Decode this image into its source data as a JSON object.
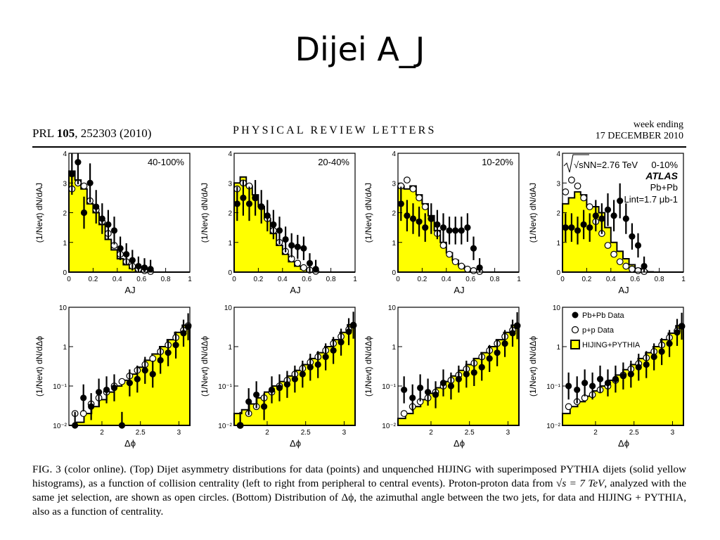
{
  "slide": {
    "title": "Dijei A_J"
  },
  "paper": {
    "journal": "PRL",
    "volume": "105",
    "ref_rest": ", 252303 (2010)",
    "header_center": "PHYSICAL REVIEW LETTERS",
    "header_right_1": "week ending",
    "header_right_2": "17 DECEMBER 2010"
  },
  "caption": {
    "fig": "FIG. 3 (color online).",
    "p1": "(Top) Dijet asymmetry distributions for data (points) and unquenched",
    "hijing": "HIJING",
    "p2": "with superimposed",
    "pythia": "PYTHIA",
    "p3": "dijets (solid yellow histograms), as a function of collision centrality (left to right from peripheral to central events). Proton-proton data from",
    "sqrt_s": "√s = 7 TeV",
    "p4": ", analyzed with the same jet selection, are shown as open circles. (Bottom) Distribution of Δϕ, the azimuthal angle between the two jets, for data and",
    "hp": "HIJING + PYTHIA",
    "p5": ", also as a function of centrality."
  },
  "colors": {
    "histogram_fill": "#ffff00",
    "line": "#000000",
    "background": "#ffffff"
  },
  "annotations": {
    "sqrt_label": "√sNN=2.76 TeV",
    "atlas": "ATLAS",
    "system": "Pb+Pb",
    "lumi": "Lint=1.7 μb-1"
  },
  "legend": {
    "pbpb": "Pb+Pb Data",
    "pp": "p+p Data",
    "hijing": "HIJING+PYTHIA"
  },
  "chart_data": [
    {
      "type": "bar",
      "panel": "AJ",
      "centrality": "40-100%",
      "xlabel": "AJ",
      "ylabel": "(1/Nevt) dN/dAJ",
      "xlim": [
        0,
        1
      ],
      "ylim": [
        0,
        4
      ],
      "x_ticks": [
        "0",
        "0.2",
        "0.4",
        "0.6",
        "0.8",
        "1"
      ],
      "y_ticks": [
        "0",
        "1",
        "2",
        "3",
        "4"
      ],
      "hist": [
        3.4,
        3.1,
        2.8,
        2.3,
        2.0,
        1.6,
        1.1,
        0.75,
        0.45,
        0.25,
        0.12,
        0.05,
        0.02,
        0,
        0,
        0,
        0,
        0,
        0,
        0
      ],
      "pbpb": [
        [
          0.025,
          3.3
        ],
        [
          0.075,
          3.7
        ],
        [
          0.125,
          2.0
        ],
        [
          0.175,
          3.0
        ],
        [
          0.225,
          2.2
        ],
        [
          0.275,
          1.8
        ],
        [
          0.325,
          1.6
        ],
        [
          0.375,
          1.4
        ],
        [
          0.425,
          0.8
        ],
        [
          0.475,
          0.6
        ],
        [
          0.525,
          0.4
        ],
        [
          0.575,
          0.2
        ],
        [
          0.625,
          0.15
        ],
        [
          0.675,
          0.1
        ]
      ],
      "pp": [
        [
          0.025,
          2.8
        ],
        [
          0.075,
          3.0
        ],
        [
          0.125,
          2.9
        ],
        [
          0.175,
          2.4
        ],
        [
          0.225,
          2.1
        ],
        [
          0.275,
          1.7
        ],
        [
          0.325,
          1.3
        ],
        [
          0.375,
          0.9
        ],
        [
          0.425,
          0.6
        ],
        [
          0.475,
          0.35
        ],
        [
          0.525,
          0.2
        ],
        [
          0.575,
          0.1
        ],
        [
          0.625,
          0.05
        ],
        [
          0.675,
          0.02
        ]
      ]
    },
    {
      "type": "bar",
      "panel": "AJ",
      "centrality": "20-40%",
      "xlabel": "AJ",
      "ylabel": "(1/Nevt) dN/dAJ",
      "xlim": [
        0,
        1
      ],
      "ylim": [
        0,
        4
      ],
      "x_ticks": [
        "0",
        "0.2",
        "0.4",
        "0.6",
        "0.8",
        "1"
      ],
      "y_ticks": [
        "0",
        "1",
        "2",
        "3",
        "4"
      ],
      "hist": [
        3.0,
        3.2,
        2.9,
        2.6,
        2.2,
        1.8,
        1.3,
        0.9,
        0.6,
        0.35,
        0.2,
        0.1,
        0.04,
        0.01,
        0,
        0,
        0,
        0,
        0,
        0
      ],
      "pbpb": [
        [
          0.025,
          2.3
        ],
        [
          0.075,
          2.5
        ],
        [
          0.125,
          2.3
        ],
        [
          0.175,
          2.5
        ],
        [
          0.225,
          2.2
        ],
        [
          0.275,
          1.9
        ],
        [
          0.325,
          1.6
        ],
        [
          0.375,
          1.4
        ],
        [
          0.425,
          1.1
        ],
        [
          0.475,
          0.9
        ],
        [
          0.525,
          0.85
        ],
        [
          0.575,
          0.8
        ],
        [
          0.625,
          0.3
        ],
        [
          0.675,
          0.1
        ]
      ],
      "pp": [
        [
          0.025,
          2.8
        ],
        [
          0.075,
          3.0
        ],
        [
          0.125,
          2.9
        ],
        [
          0.175,
          2.5
        ],
        [
          0.225,
          2.2
        ],
        [
          0.275,
          1.8
        ],
        [
          0.325,
          1.4
        ],
        [
          0.375,
          1.0
        ],
        [
          0.425,
          0.7
        ],
        [
          0.475,
          0.45
        ],
        [
          0.525,
          0.3
        ],
        [
          0.575,
          0.15
        ],
        [
          0.625,
          0.07
        ],
        [
          0.675,
          0.03
        ]
      ]
    },
    {
      "type": "bar",
      "panel": "AJ",
      "centrality": "10-20%",
      "xlabel": "AJ",
      "ylabel": "(1/Nevt) dN/dAJ",
      "xlim": [
        0,
        1
      ],
      "ylim": [
        0,
        4
      ],
      "x_ticks": [
        "0",
        "0.2",
        "0.4",
        "0.6",
        "0.8",
        "1"
      ],
      "y_ticks": [
        "0",
        "1",
        "2",
        "3",
        "4"
      ],
      "hist": [
        2.9,
        2.8,
        2.9,
        2.6,
        2.3,
        1.9,
        1.4,
        1.0,
        0.65,
        0.4,
        0.22,
        0.1,
        0.04,
        0.01,
        0,
        0,
        0,
        0,
        0,
        0
      ],
      "pbpb": [
        [
          0.025,
          2.3
        ],
        [
          0.075,
          1.9
        ],
        [
          0.125,
          1.8
        ],
        [
          0.175,
          1.7
        ],
        [
          0.225,
          1.5
        ],
        [
          0.275,
          1.8
        ],
        [
          0.325,
          1.6
        ],
        [
          0.375,
          1.5
        ],
        [
          0.425,
          1.4
        ],
        [
          0.475,
          1.4
        ],
        [
          0.525,
          1.4
        ],
        [
          0.575,
          1.5
        ],
        [
          0.625,
          0.8
        ],
        [
          0.675,
          0.15
        ]
      ],
      "pp": [
        [
          0.025,
          2.9
        ],
        [
          0.075,
          3.1
        ],
        [
          0.125,
          2.8
        ],
        [
          0.175,
          2.5
        ],
        [
          0.225,
          2.2
        ],
        [
          0.275,
          1.8
        ],
        [
          0.325,
          1.3
        ],
        [
          0.375,
          0.9
        ],
        [
          0.425,
          0.6
        ],
        [
          0.475,
          0.35
        ],
        [
          0.525,
          0.2
        ],
        [
          0.575,
          0.1
        ],
        [
          0.625,
          0.05
        ],
        [
          0.675,
          0.02
        ]
      ]
    },
    {
      "type": "bar",
      "panel": "AJ",
      "centrality": "0-10%",
      "xlabel": "AJ",
      "ylabel": "(1/Nevt) dN/dAJ",
      "xlim": [
        0,
        1
      ],
      "ylim": [
        0,
        4
      ],
      "x_ticks": [
        "0",
        "0.2",
        "0.4",
        "0.6",
        "0.8",
        "1"
      ],
      "y_ticks": [
        "0",
        "1",
        "2",
        "3",
        "4"
      ],
      "hist": [
        2.3,
        2.5,
        2.7,
        2.6,
        2.2,
        2.2,
        2.0,
        1.5,
        1.0,
        0.7,
        0.45,
        0.25,
        0.12,
        0.05,
        0.01,
        0,
        0,
        0,
        0,
        0
      ],
      "pbpb": [
        [
          0.025,
          1.5
        ],
        [
          0.075,
          1.5
        ],
        [
          0.125,
          1.4
        ],
        [
          0.175,
          1.6
        ],
        [
          0.225,
          1.5
        ],
        [
          0.275,
          1.9
        ],
        [
          0.325,
          1.8
        ],
        [
          0.375,
          2.1
        ],
        [
          0.425,
          1.9
        ],
        [
          0.475,
          2.4
        ],
        [
          0.525,
          1.8
        ],
        [
          0.575,
          1.2
        ],
        [
          0.625,
          0.9
        ],
        [
          0.675,
          0.2
        ]
      ],
      "pp": [
        [
          0.025,
          2.7
        ],
        [
          0.075,
          3.1
        ],
        [
          0.125,
          2.9
        ],
        [
          0.175,
          2.5
        ],
        [
          0.225,
          2.2
        ],
        [
          0.275,
          1.7
        ],
        [
          0.325,
          1.3
        ],
        [
          0.375,
          0.9
        ],
        [
          0.425,
          0.6
        ],
        [
          0.475,
          0.35
        ],
        [
          0.525,
          0.2
        ],
        [
          0.575,
          0.1
        ],
        [
          0.625,
          0.05
        ],
        [
          0.675,
          0.02
        ]
      ]
    },
    {
      "type": "bar",
      "panel": "dphi",
      "centrality": "40-100%",
      "xlabel": "Δϕ",
      "ylabel": "(1/Nevt) dN/dΔϕ",
      "xlim": [
        1.571,
        3.142
      ],
      "ylim": [
        0.01,
        10
      ],
      "log_y": true,
      "x_ticks": [
        "2",
        "2.5",
        "3"
      ],
      "y_ticks": [
        "10⁻²",
        "10⁻¹",
        "1",
        "10"
      ],
      "hist": [
        0.009,
        0.012,
        0.02,
        0.03,
        0.045,
        0.07,
        0.1,
        0.14,
        0.2,
        0.3,
        0.45,
        0.65,
        1.0,
        1.5,
        2.3,
        3.5
      ],
      "pbpb": [
        [
          1.65,
          0.01
        ],
        [
          1.76,
          0.05
        ],
        [
          1.86,
          0.03
        ],
        [
          1.96,
          0.07
        ],
        [
          2.06,
          0.08
        ],
        [
          2.16,
          0.09
        ],
        [
          2.26,
          0.01
        ],
        [
          2.36,
          0.12
        ],
        [
          2.46,
          0.15
        ],
        [
          2.56,
          0.25
        ],
        [
          2.66,
          0.2
        ],
        [
          2.76,
          0.45
        ],
        [
          2.86,
          0.7
        ],
        [
          2.96,
          1.1
        ],
        [
          3.06,
          2.2
        ],
        [
          3.12,
          3.2
        ]
      ],
      "pp": [
        [
          1.65,
          0.02
        ],
        [
          1.76,
          0.02
        ],
        [
          1.86,
          0.035
        ],
        [
          1.96,
          0.05
        ],
        [
          2.06,
          0.07
        ],
        [
          2.16,
          0.1
        ],
        [
          2.26,
          0.13
        ],
        [
          2.36,
          0.18
        ],
        [
          2.46,
          0.25
        ],
        [
          2.56,
          0.35
        ],
        [
          2.66,
          0.5
        ],
        [
          2.76,
          0.75
        ],
        [
          2.86,
          1.1
        ],
        [
          2.96,
          1.7
        ],
        [
          3.06,
          2.6
        ],
        [
          3.12,
          3.4
        ]
      ]
    },
    {
      "type": "bar",
      "panel": "dphi",
      "centrality": "20-40%",
      "xlabel": "Δϕ",
      "ylabel": "(1/Nevt) dN/dΔϕ",
      "xlim": [
        1.571,
        3.142
      ],
      "ylim": [
        0.01,
        10
      ],
      "log_y": true,
      "x_ticks": [
        "2",
        "2.5",
        "3"
      ],
      "y_ticks": [
        "10⁻²",
        "10⁻¹",
        "1",
        "10"
      ],
      "hist": [
        0.02,
        0.025,
        0.035,
        0.05,
        0.07,
        0.1,
        0.13,
        0.18,
        0.25,
        0.35,
        0.5,
        0.7,
        1.0,
        1.5,
        2.3,
        3.6
      ],
      "pbpb": [
        [
          1.65,
          0.01
        ],
        [
          1.76,
          0.04
        ],
        [
          1.86,
          0.06
        ],
        [
          1.96,
          0.03
        ],
        [
          2.06,
          0.08
        ],
        [
          2.16,
          0.09
        ],
        [
          2.26,
          0.11
        ],
        [
          2.36,
          0.15
        ],
        [
          2.46,
          0.2
        ],
        [
          2.56,
          0.3
        ],
        [
          2.66,
          0.35
        ],
        [
          2.76,
          0.55
        ],
        [
          2.86,
          0.8
        ],
        [
          2.96,
          1.3
        ],
        [
          3.06,
          2.4
        ],
        [
          3.12,
          3.5
        ]
      ],
      "pp": [
        [
          1.65,
          0.01
        ],
        [
          1.76,
          0.02
        ],
        [
          1.86,
          0.03
        ],
        [
          1.96,
          0.05
        ],
        [
          2.06,
          0.07
        ],
        [
          2.16,
          0.1
        ],
        [
          2.26,
          0.14
        ],
        [
          2.36,
          0.2
        ],
        [
          2.46,
          0.28
        ],
        [
          2.56,
          0.4
        ],
        [
          2.66,
          0.55
        ],
        [
          2.76,
          0.8
        ],
        [
          2.86,
          1.2
        ],
        [
          2.96,
          1.8
        ],
        [
          3.06,
          2.7
        ],
        [
          3.12,
          3.5
        ]
      ]
    },
    {
      "type": "bar",
      "panel": "dphi",
      "centrality": "10-20%",
      "xlabel": "Δϕ",
      "ylabel": "(1/Nevt) dN/dΔϕ",
      "xlim": [
        1.571,
        3.142
      ],
      "ylim": [
        0.01,
        10
      ],
      "log_y": true,
      "x_ticks": [
        "2",
        "2.5",
        "3"
      ],
      "y_ticks": [
        "10⁻²",
        "10⁻¹",
        "1",
        "10"
      ],
      "hist": [
        0.015,
        0.02,
        0.03,
        0.045,
        0.065,
        0.09,
        0.13,
        0.18,
        0.25,
        0.35,
        0.5,
        0.7,
        1.0,
        1.5,
        2.3,
        3.5
      ],
      "pbpb": [
        [
          1.65,
          0.08
        ],
        [
          1.76,
          0.05
        ],
        [
          1.86,
          0.09
        ],
        [
          1.96,
          0.07
        ],
        [
          2.06,
          0.06
        ],
        [
          2.16,
          0.12
        ],
        [
          2.26,
          0.1
        ],
        [
          2.36,
          0.15
        ],
        [
          2.46,
          0.2
        ],
        [
          2.56,
          0.22
        ],
        [
          2.66,
          0.3
        ],
        [
          2.76,
          0.5
        ],
        [
          2.86,
          0.7
        ],
        [
          2.96,
          1.2
        ],
        [
          3.06,
          2.2
        ],
        [
          3.12,
          3.4
        ]
      ],
      "pp": [
        [
          1.65,
          0.02
        ],
        [
          1.76,
          0.03
        ],
        [
          1.86,
          0.04
        ],
        [
          1.96,
          0.05
        ],
        [
          2.06,
          0.07
        ],
        [
          2.16,
          0.1
        ],
        [
          2.26,
          0.14
        ],
        [
          2.36,
          0.19
        ],
        [
          2.46,
          0.27
        ],
        [
          2.56,
          0.38
        ],
        [
          2.66,
          0.55
        ],
        [
          2.76,
          0.8
        ],
        [
          2.86,
          1.2
        ],
        [
          2.96,
          1.8
        ],
        [
          3.06,
          2.6
        ],
        [
          3.12,
          3.4
        ]
      ]
    },
    {
      "type": "bar",
      "panel": "dphi",
      "centrality": "0-10%",
      "xlabel": "Δϕ",
      "ylabel": "(1/Nevt) dN/dΔϕ",
      "xlim": [
        1.571,
        3.142
      ],
      "ylim": [
        0.01,
        10
      ],
      "log_y": true,
      "x_ticks": [
        "2",
        "2.5",
        "3"
      ],
      "y_ticks": [
        "10⁻²",
        "10⁻¹",
        "1",
        "10"
      ],
      "hist": [
        0.02,
        0.03,
        0.04,
        0.055,
        0.075,
        0.1,
        0.14,
        0.19,
        0.26,
        0.35,
        0.5,
        0.7,
        1.0,
        1.5,
        2.2,
        3.4
      ],
      "pbpb": [
        [
          1.65,
          0.1
        ],
        [
          1.76,
          0.08
        ],
        [
          1.86,
          0.12
        ],
        [
          1.96,
          0.1
        ],
        [
          2.06,
          0.15
        ],
        [
          2.16,
          0.12
        ],
        [
          2.26,
          0.15
        ],
        [
          2.36,
          0.18
        ],
        [
          2.46,
          0.2
        ],
        [
          2.56,
          0.3
        ],
        [
          2.66,
          0.35
        ],
        [
          2.76,
          0.55
        ],
        [
          2.86,
          0.75
        ],
        [
          2.96,
          1.2
        ],
        [
          3.06,
          2.3
        ],
        [
          3.12,
          3.3
        ]
      ],
      "pp": [
        [
          1.65,
          0.03
        ],
        [
          1.76,
          0.04
        ],
        [
          1.86,
          0.05
        ],
        [
          1.96,
          0.06
        ],
        [
          2.06,
          0.08
        ],
        [
          2.16,
          0.1
        ],
        [
          2.26,
          0.14
        ],
        [
          2.36,
          0.19
        ],
        [
          2.46,
          0.27
        ],
        [
          2.56,
          0.37
        ],
        [
          2.66,
          0.52
        ],
        [
          2.76,
          0.75
        ],
        [
          2.86,
          1.1
        ],
        [
          2.96,
          1.7
        ],
        [
          3.06,
          2.5
        ],
        [
          3.12,
          3.3
        ]
      ]
    }
  ]
}
